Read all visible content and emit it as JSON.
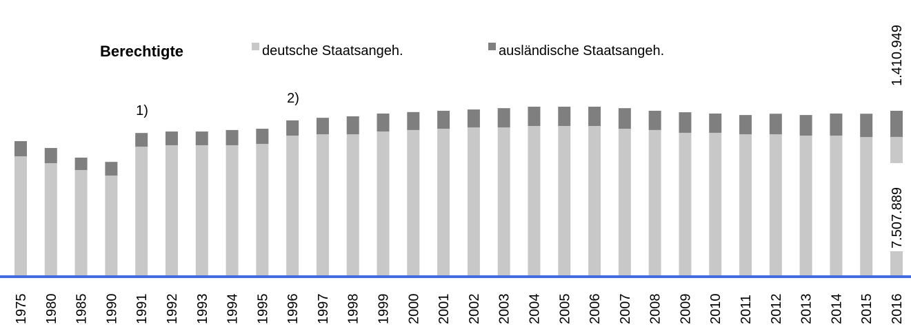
{
  "chart_data": {
    "type": "stacked_bar",
    "title": "Berechtigte",
    "categories": [
      "1975",
      "1980",
      "1985",
      "1990",
      "1991",
      "1992",
      "1993",
      "1994",
      "1995",
      "1996",
      "1997",
      "1998",
      "1999",
      "2000",
      "2001",
      "2002",
      "2003",
      "2004",
      "2005",
      "2006",
      "2007",
      "2008",
      "2009",
      "2010",
      "2011",
      "2012",
      "2013",
      "2014",
      "2015",
      "2016"
    ],
    "series": [
      {
        "name": "deutsche Staatsangeh.",
        "color": "#c8c8c8",
        "values": [
          6460000,
          6090000,
          5720000,
          5420000,
          6980000,
          7060000,
          7060000,
          7060000,
          7130000,
          7580000,
          7650000,
          7650000,
          7800000,
          7880000,
          7950000,
          8020000,
          8020000,
          8100000,
          8100000,
          8100000,
          7950000,
          7880000,
          7730000,
          7730000,
          7650000,
          7650000,
          7580000,
          7580000,
          7500000,
          7507889
        ],
        "value_labels": [
          null,
          null,
          null,
          null,
          null,
          null,
          null,
          null,
          null,
          null,
          null,
          null,
          null,
          null,
          null,
          null,
          null,
          null,
          null,
          null,
          null,
          null,
          null,
          null,
          null,
          null,
          null,
          null,
          null,
          "7.507.889"
        ]
      },
      {
        "name": "ausländische Staatsangeh.",
        "color": "#7f7f7f",
        "values": [
          820000,
          820000,
          670000,
          740000,
          740000,
          740000,
          740000,
          820000,
          820000,
          820000,
          890000,
          970000,
          970000,
          970000,
          970000,
          970000,
          1040000,
          1040000,
          1040000,
          1040000,
          1110000,
          1040000,
          1110000,
          1040000,
          1040000,
          1110000,
          1110000,
          1190000,
          1260000,
          1410949
        ],
        "value_labels": [
          null,
          null,
          null,
          null,
          null,
          null,
          null,
          null,
          null,
          null,
          null,
          null,
          null,
          null,
          null,
          null,
          null,
          null,
          null,
          null,
          null,
          null,
          null,
          null,
          null,
          null,
          null,
          null,
          null,
          "1.410.949"
        ]
      }
    ],
    "annotations": [
      {
        "text": "1)",
        "category": "1991"
      },
      {
        "text": "2)",
        "category": "1996"
      }
    ],
    "baseline_color": "#4169e1"
  }
}
